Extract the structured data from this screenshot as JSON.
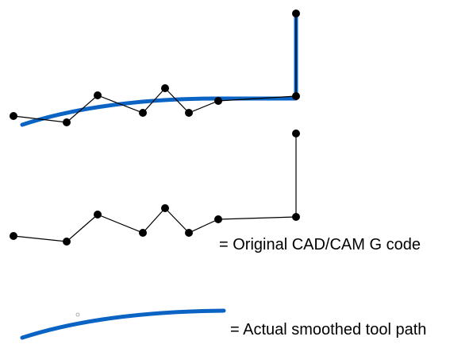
{
  "colors": {
    "tool_path": "#0b63c4",
    "gcode_line": "#000000",
    "gcode_point": "#000000",
    "background": "#ffffff"
  },
  "legend": {
    "original_label": "= Original CAD/CAM G code",
    "actual_label": "= Actual smoothed tool path"
  }
}
